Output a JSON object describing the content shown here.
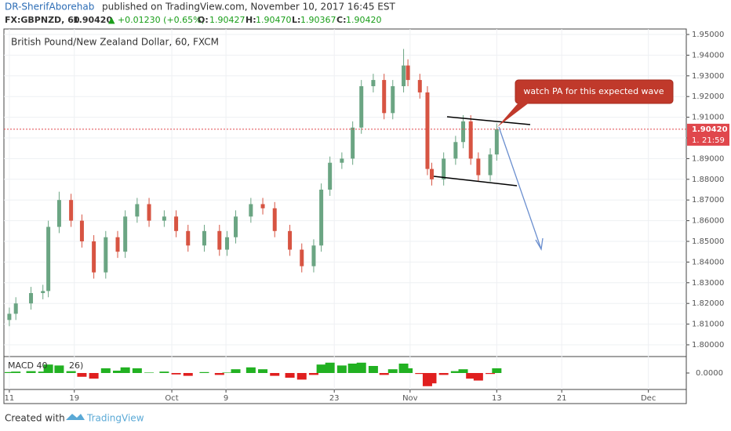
{
  "header": {
    "author": "DR-SherifAborehab",
    "published": "published on TradingView.com, November 10, 2017 16:45 EST",
    "symbol": "FX:GBPNZD, 60",
    "price": "1.90420",
    "change": "▲ +0.01230 (+0.65%)",
    "o_label": "O:",
    "open": "1.90427",
    "h_label": "H:",
    "high": "1.90470",
    "l_label": "L:",
    "low": "1.90367",
    "c_label": "C:",
    "close": "1.90420"
  },
  "chart_data": {
    "type": "candlestick",
    "title": "British Pound/New Zealand Dollar, 60, FXCM",
    "x": [
      0,
      0.6,
      2.0,
      3.1,
      3.6,
      4.6,
      5.7,
      6.7,
      7.8,
      8.9,
      10.0,
      10.7,
      11.8,
      12.9,
      14.3,
      15.4,
      16.5,
      18.0,
      19.4,
      20.1,
      20.9,
      22.3,
      23.4,
      24.5,
      25.9,
      27.0,
      28.1,
      28.8,
      29.6,
      30.7,
      31.7,
      32.5,
      33.6,
      34.6,
      35.4,
      36.4,
      36.8,
      37.9,
      38.6,
      39.0,
      40.1,
      41.2,
      41.9,
      42.6,
      43.3,
      44.4,
      45.0
    ],
    "open": [
      1.812,
      1.815,
      1.82,
      1.825,
      1.826,
      1.857,
      1.87,
      1.86,
      1.85,
      1.835,
      1.852,
      1.845,
      1.862,
      1.868,
      1.86,
      1.862,
      1.855,
      1.848,
      1.855,
      1.846,
      1.852,
      1.862,
      1.868,
      1.866,
      1.855,
      1.846,
      1.838,
      1.848,
      1.875,
      1.888,
      1.89,
      1.905,
      1.925,
      1.928,
      1.912,
      1.925,
      1.935,
      1.928,
      1.922,
      1.885,
      1.88,
      1.89,
      1.898,
      1.908,
      1.89,
      1.882,
      1.892
    ],
    "high": [
      1.818,
      1.823,
      1.828,
      1.829,
      1.86,
      1.874,
      1.873,
      1.863,
      1.853,
      1.855,
      1.855,
      1.865,
      1.871,
      1.871,
      1.865,
      1.865,
      1.858,
      1.858,
      1.858,
      1.855,
      1.865,
      1.871,
      1.871,
      1.869,
      1.858,
      1.849,
      1.851,
      1.878,
      1.891,
      1.893,
      1.908,
      1.928,
      1.931,
      1.931,
      1.928,
      1.943,
      1.938,
      1.931,
      1.925,
      1.888,
      1.893,
      1.901,
      1.911,
      1.911,
      1.893,
      1.895,
      1.907
    ],
    "low": [
      1.809,
      1.812,
      1.817,
      1.822,
      1.823,
      1.854,
      1.857,
      1.847,
      1.832,
      1.832,
      1.842,
      1.842,
      1.859,
      1.857,
      1.857,
      1.852,
      1.845,
      1.845,
      1.843,
      1.843,
      1.849,
      1.859,
      1.863,
      1.852,
      1.843,
      1.835,
      1.835,
      1.845,
      1.872,
      1.885,
      1.887,
      1.902,
      1.922,
      1.909,
      1.909,
      1.922,
      1.925,
      1.919,
      1.882,
      1.877,
      1.877,
      1.887,
      1.895,
      1.887,
      1.879,
      1.879,
      1.889
    ],
    "close": [
      1.815,
      1.82,
      1.825,
      1.826,
      1.857,
      1.87,
      1.86,
      1.85,
      1.835,
      1.852,
      1.845,
      1.862,
      1.868,
      1.86,
      1.862,
      1.855,
      1.848,
      1.855,
      1.846,
      1.852,
      1.862,
      1.868,
      1.866,
      1.855,
      1.846,
      1.838,
      1.848,
      1.875,
      1.888,
      1.89,
      1.905,
      1.925,
      1.928,
      1.912,
      1.925,
      1.935,
      1.928,
      1.922,
      1.885,
      1.88,
      1.89,
      1.898,
      1.908,
      1.89,
      1.882,
      1.892,
      1.9042
    ],
    "up_color": "#6ba583",
    "down_color": "#d75442",
    "xlim": [
      -0.5,
      62.5
    ],
    "xticks": [
      {
        "value": 0,
        "label": "11"
      },
      {
        "value": 6,
        "label": "19"
      },
      {
        "value": 15,
        "label": "Oct"
      },
      {
        "value": 20,
        "label": "9"
      },
      {
        "value": 30,
        "label": "23"
      },
      {
        "value": 37,
        "label": "Nov"
      },
      {
        "value": 45,
        "label": "13"
      },
      {
        "value": 51,
        "label": "21"
      },
      {
        "value": 59,
        "label": "Dec"
      }
    ],
    "ylim": [
      1.79432,
      1.95265
    ],
    "yticks": [
      {
        "value": 1.8,
        "label": "1.80000"
      },
      {
        "value": 1.81,
        "label": "1.81000"
      },
      {
        "value": 1.82,
        "label": "1.82000"
      },
      {
        "value": 1.83,
        "label": "1.83000"
      },
      {
        "value": 1.84,
        "label": "1.84000"
      },
      {
        "value": 1.85,
        "label": "1.85000"
      },
      {
        "value": 1.86,
        "label": "1.86000"
      },
      {
        "value": 1.87,
        "label": "1.87000"
      },
      {
        "value": 1.88,
        "label": "1.88000"
      },
      {
        "value": 1.89,
        "label": "1.89000"
      },
      {
        "value": 1.9,
        "label": "1.90000"
      },
      {
        "value": 1.91,
        "label": "1.91000"
      },
      {
        "value": 1.92,
        "label": "1.92000"
      },
      {
        "value": 1.93,
        "label": "1.93000"
      },
      {
        "value": 1.94,
        "label": "1.94000"
      },
      {
        "value": 1.95,
        "label": "1.95000"
      }
    ],
    "last_price": {
      "value": 1.9042,
      "label": "1.90420"
    },
    "countdown": "21:59",
    "axis_stub": "1.",
    "annotation": "watch PA for this expected wave",
    "macd": {
      "label": "MACD 40",
      "label_tail": "26)",
      "ylim": [
        -0.0035,
        0.0035
      ],
      "yticks": [
        {
          "value": 0,
          "label": "0.0000"
        }
      ],
      "values": [
        0.0002,
        0.0003,
        0.0004,
        0.0003,
        0.0018,
        0.0016,
        0.0004,
        -0.0008,
        -0.0012,
        0.001,
        0.0005,
        0.0012,
        0.001,
        0.0001,
        0.0003,
        -0.0003,
        -0.0006,
        0.0002,
        -0.0004,
        0.0001,
        0.0008,
        0.0012,
        0.0008,
        -0.0006,
        -0.001,
        -0.0014,
        -0.0004,
        0.0018,
        0.0022,
        0.0016,
        0.002,
        0.0022,
        0.0015,
        -0.0004,
        0.0008,
        0.002,
        0.001,
        -0.0002,
        -0.0028,
        -0.0022,
        -0.0004,
        0.0004,
        0.0008,
        -0.0012,
        -0.0016,
        -0.0002,
        0.001
      ],
      "up_color": "#22b122",
      "down_color": "#e01f1f"
    }
  },
  "footer": {
    "created": "Created with",
    "brand": "TradingView"
  }
}
